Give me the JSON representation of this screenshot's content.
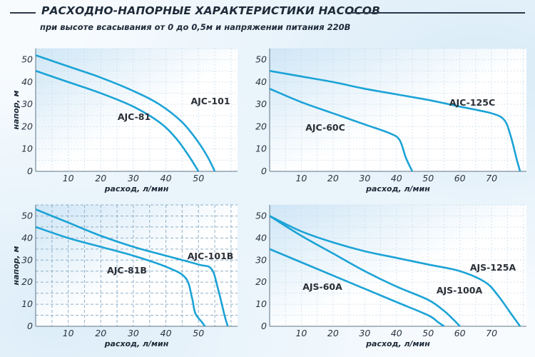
{
  "title": "РАСХОДНО-НАПОРНЫЕ ХАРАКТЕРИСТИКИ НАСОСОВ",
  "subtitle": "при высоте всасывания от 0 до 0,5м и напряжении питания 220В",
  "colors": {
    "curve": "#1ca3d6",
    "grid_light": "#c7dceb",
    "grid_dark": "#8fb0c8",
    "text": "#1e2a38"
  },
  "chart_data": [
    {
      "type": "line",
      "xlabel": "расход, л/мин",
      "ylabel": "напор, м",
      "xlim": [
        0,
        62
      ],
      "ylim": [
        0,
        55
      ],
      "xticks": [
        10,
        20,
        30,
        40,
        50
      ],
      "yticks": [
        0,
        10,
        20,
        30,
        40,
        50
      ],
      "grid": "dotted",
      "series": [
        {
          "name": "AJC-101",
          "x": [
            0,
            10,
            20,
            30,
            38,
            45,
            50,
            53,
            55
          ],
          "y": [
            52,
            47,
            42,
            36,
            30,
            22,
            13,
            6,
            0
          ]
        },
        {
          "name": "AJC-81",
          "x": [
            0,
            10,
            20,
            30,
            38,
            43,
            47,
            50
          ],
          "y": [
            45,
            40,
            35,
            29,
            22,
            15,
            7,
            0
          ]
        }
      ]
    },
    {
      "type": "line",
      "xlabel": "расход, л/мин",
      "ylabel": "",
      "xlim": [
        0,
        81
      ],
      "ylim": [
        0,
        55
      ],
      "xticks": [
        10,
        20,
        30,
        40,
        50,
        60,
        70
      ],
      "yticks": [
        0,
        10,
        20,
        30,
        40,
        50
      ],
      "grid": "dotted",
      "series": [
        {
          "name": "AJC-125C",
          "x": [
            0,
            10,
            20,
            30,
            40,
            50,
            60,
            70,
            74,
            76,
            78,
            79
          ],
          "y": [
            45,
            42.5,
            40,
            37,
            34.5,
            32,
            29,
            26,
            23,
            16,
            5,
            0
          ]
        },
        {
          "name": "AJC-60C",
          "x": [
            0,
            10,
            20,
            30,
            38,
            41,
            43,
            45
          ],
          "y": [
            37,
            31,
            26,
            21,
            17,
            14,
            6,
            0
          ]
        }
      ]
    },
    {
      "type": "line",
      "xlabel": "расход, л/мин",
      "ylabel": "напор, м",
      "xlim": [
        0,
        62
      ],
      "ylim": [
        0,
        55
      ],
      "xticks": [
        10,
        20,
        30,
        40,
        50
      ],
      "yticks": [
        0,
        10,
        20,
        30,
        40,
        50
      ],
      "grid": "dashed",
      "series": [
        {
          "name": "AJC-101B",
          "x": [
            0,
            10,
            20,
            30,
            40,
            50,
            54,
            56,
            58,
            59
          ],
          "y": [
            53,
            47,
            41,
            36,
            32,
            28,
            26,
            17,
            5,
            0
          ]
        },
        {
          "name": "AJC-81B",
          "x": [
            0,
            10,
            20,
            30,
            40,
            46,
            48,
            49,
            51,
            52
          ],
          "y": [
            45,
            40,
            36,
            32,
            27,
            22,
            13,
            6,
            2,
            0
          ]
        }
      ]
    },
    {
      "type": "line",
      "xlabel": "расход, л/мин",
      "ylabel": "",
      "xlim": [
        0,
        81
      ],
      "ylim": [
        0,
        55
      ],
      "xticks": [
        10,
        20,
        30,
        40,
        50,
        60,
        70
      ],
      "yticks": [
        0,
        10,
        20,
        30,
        40,
        50
      ],
      "grid": "dotted",
      "series": [
        {
          "name": "AJS-125A",
          "x": [
            0,
            10,
            20,
            30,
            40,
            50,
            60,
            68,
            72,
            76,
            79
          ],
          "y": [
            50,
            43,
            38,
            34,
            31,
            28,
            25,
            20,
            14,
            6,
            0
          ]
        },
        {
          "name": "AJS-100A",
          "x": [
            0,
            10,
            20,
            30,
            40,
            50,
            55,
            58,
            60
          ],
          "y": [
            50,
            41,
            33,
            25,
            18,
            12,
            7,
            3,
            0
          ]
        },
        {
          "name": "AJS-60A",
          "x": [
            0,
            10,
            20,
            30,
            40,
            50,
            53,
            55
          ],
          "y": [
            35,
            29,
            23,
            17,
            11,
            5,
            2,
            0
          ]
        }
      ]
    }
  ]
}
